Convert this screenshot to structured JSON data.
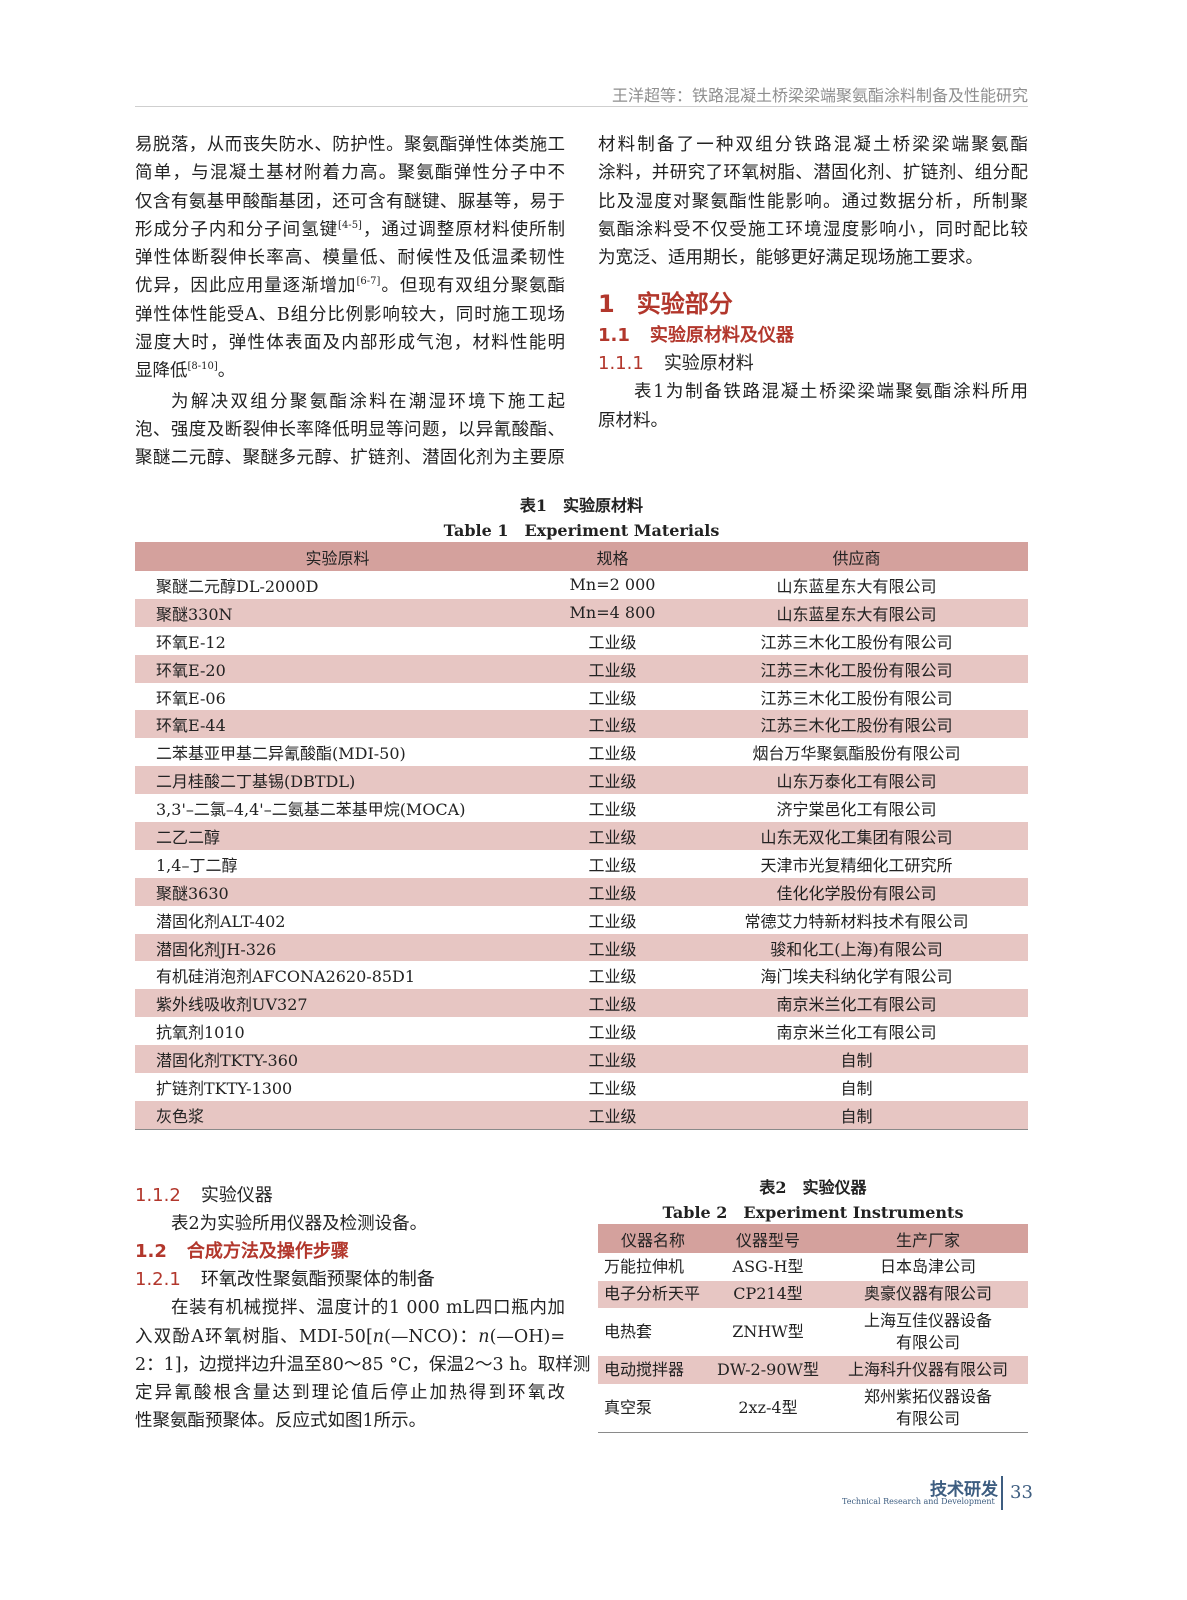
{
  "running_head": "王洋超等：铁路混凝土桥梁梁端聚氨酯涂料制备及性能研究",
  "left_column": {
    "para1": [
      "易脱落，从而丧失防水、防护性。聚氨酯弹性体类施工",
      "简单，与混凝土基材附着力高。聚氨酯弹性分子中不",
      "仅含有氨基甲酸酯基团，还可含有醚键、脲基等，易于",
      {
        "a": "形成分子内和分子间氢键",
        "ref": "[4-5]",
        "b": "，通过调整原材料使所制"
      },
      "弹性体断裂伸长率高、模量低、耐候性及低温柔韧性",
      {
        "a": "优异，因此应用量逐渐增加",
        "ref": "[6-7]",
        "b": "。但现有双组分聚氨酯"
      },
      "弹性体性能受A、B组分比例影响较大，同时施工现场",
      "湿度大时，弹性体表面及内部形成气泡，材料性能明",
      {
        "a": "显降低",
        "ref": "[8-10]",
        "b": "。"
      }
    ],
    "para2": [
      "为解决双组分聚氨酯涂料在潮湿环境下施工起",
      "泡、强度及断裂伸长率降低明显等问题，以异氰酸酯、",
      "聚醚二元醇、聚醚多元醇、扩链剂、潜固化剂为主要原"
    ],
    "sec_1_1_2": {
      "num": "1.1.2",
      "title": "实验仪器"
    },
    "para3": "表2为实验所用仪器及检测设备。",
    "sec_1_2": {
      "num": "1.2",
      "title": "合成方法及操作步骤"
    },
    "sec_1_2_1": {
      "num": "1.2.1",
      "title": "环氧改性聚氨酯预聚体的制备"
    },
    "para4": [
      "在装有机械搅拌、温度计的1 000 mL四口瓶内加",
      {
        "a": "入双酚A环氧树脂、MDI-50[",
        "n1": "n",
        "b": "(—NCO)：",
        "n2": "n",
        "c": "(—OH)="
      },
      "2：1]，边搅拌边升温至80～85 °C，保温2～3 h。取样测",
      "定异氰酸根含量达到理论值后停止加热得到环氧改",
      "性聚氨酯预聚体。反应式如图1所示。"
    ]
  },
  "right_column": {
    "para1": [
      "材料制备了一种双组分铁路混凝土桥梁梁端聚氨酯",
      "涂料，并研究了环氧树脂、潜固化剂、扩链剂、组分配",
      "比及湿度对聚氨酯性能影响。通过数据分析，所制聚",
      "氨酯涂料受不仅受施工环境湿度影响小，同时配比较",
      "为宽泛、适用期长，能够更好满足现场施工要求。"
    ],
    "sec_1": {
      "num": "1",
      "title": "实验部分"
    },
    "sec_1_1": {
      "num": "1.1",
      "title": "实验原材料及仪器"
    },
    "sec_1_1_1": {
      "num": "1.1.1",
      "title": "实验原材料"
    },
    "para2": [
      "表1为制备铁路混凝土桥梁梁端聚氨酯涂料所用",
      "原材料。"
    ]
  },
  "table1": {
    "caption_cn": "表1　实验原材料",
    "caption_en": "Table 1　Experiment Materials",
    "headers": [
      "实验原料",
      "规格",
      "供应商"
    ],
    "rows": [
      [
        "聚醚二元醇DL-2000D",
        "Mn=2 000",
        "山东蓝星东大有限公司"
      ],
      [
        "聚醚330N",
        "Mn=4 800",
        "山东蓝星东大有限公司"
      ],
      [
        "环氧E-12",
        "工业级",
        "江苏三木化工股份有限公司"
      ],
      [
        "环氧E-20",
        "工业级",
        "江苏三木化工股份有限公司"
      ],
      [
        "环氧E-06",
        "工业级",
        "江苏三木化工股份有限公司"
      ],
      [
        "环氧E-44",
        "工业级",
        "江苏三木化工股份有限公司"
      ],
      [
        "二苯基亚甲基二异氰酸酯(MDI-50)",
        "工业级",
        "烟台万华聚氨酯股份有限公司"
      ],
      [
        "二月桂酸二丁基锡(DBTDL)",
        "工业级",
        "山东万泰化工有限公司"
      ],
      [
        "3,3'–二氯–4,4'–二氨基二苯基甲烷(MOCA)",
        "工业级",
        "济宁棠邑化工有限公司"
      ],
      [
        "二乙二醇",
        "工业级",
        "山东无双化工集团有限公司"
      ],
      [
        "1,4–丁二醇",
        "工业级",
        "天津市光复精细化工研究所"
      ],
      [
        "聚醚3630",
        "工业级",
        "佳化化学股份有限公司"
      ],
      [
        "潜固化剂ALT-402",
        "工业级",
        "常德艾力特新材料技术有限公司"
      ],
      [
        "潜固化剂JH-326",
        "工业级",
        "骏和化工(上海)有限公司"
      ],
      [
        "有机硅消泡剂AFCONA2620-85D1",
        "工业级",
        "海门埃夫科纳化学有限公司"
      ],
      [
        "紫外线吸收剂UV327",
        "工业级",
        "南京米兰化工有限公司"
      ],
      [
        "抗氧剂1010",
        "工业级",
        "南京米兰化工有限公司"
      ],
      [
        "潜固化剂TKTY-360",
        "工业级",
        "自制"
      ],
      [
        "扩链剂TKTY-1300",
        "工业级",
        "自制"
      ],
      [
        "灰色浆",
        "工业级",
        "自制"
      ]
    ]
  },
  "table2": {
    "caption_cn": "表2　实验仪器",
    "caption_en": "Table 2　Experiment Instruments",
    "headers": [
      "仪器名称",
      "仪器型号",
      "生产厂家"
    ],
    "rows": [
      [
        "万能拉伸机",
        "ASG-H型",
        "日本岛津公司"
      ],
      [
        "电子分析天平",
        "CP214型",
        "奥豪仪器有限公司"
      ],
      [
        "电热套",
        "ZNHW型",
        "上海互佳仪器设备\n有限公司"
      ],
      [
        "电动搅拌器",
        "DW-2-90W型",
        "上海科升仪器有限公司"
      ],
      [
        "真空泵",
        "2xz-4型",
        "郑州紫拓仪器设备\n有限公司"
      ]
    ]
  },
  "footer": {
    "section_cn": "技术研发",
    "section_en": "Technical Research and Development",
    "page_number": "33"
  },
  "colors": {
    "heading_red": "#b2372c",
    "table_header": "#d4a19d",
    "table_alt_row": "#e7c6c3",
    "footer_blue": "#3d5d80"
  }
}
